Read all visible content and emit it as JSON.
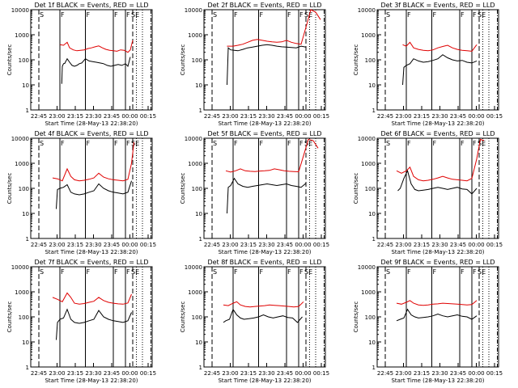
{
  "figure": {
    "xlabel": "Start Time (28-May-13 22:38:20)",
    "ylabel": "Counts/sec",
    "x_ticks": [
      "22:45",
      "23:00",
      "23:15",
      "23:30",
      "23:45",
      "00:00",
      "00:15"
    ],
    "y_ticks": [
      "1",
      "10",
      "100",
      "1000",
      "10000"
    ],
    "markers": [
      "S",
      "F",
      "F",
      "F",
      "F",
      "SE"
    ],
    "colors": {
      "events": "#000000",
      "lld": "#e00000",
      "axis": "#000000"
    }
  },
  "chart_data": [
    {
      "type": "line",
      "title": "Det 1f BLACK = Events, RED = LLD",
      "ylim": [
        1,
        10000
      ],
      "xlim_min": [
        6.67,
        98
      ],
      "log_y": true,
      "series": [
        {
          "key": "events",
          "x": [
            25.5,
            26,
            27,
            28,
            30,
            32,
            34,
            36,
            38,
            40,
            42,
            45,
            48,
            51,
            54,
            57,
            60,
            63,
            66,
            69,
            72,
            75,
            78,
            80,
            82
          ],
          "values": [
            11,
            55,
            70,
            72,
            110,
            80,
            60,
            55,
            60,
            70,
            75,
            110,
            90,
            85,
            80,
            75,
            70,
            60,
            55,
            60,
            65,
            60,
            70,
            55,
            130
          ]
        },
        {
          "key": "lld",
          "x": [
            24,
            27,
            30,
            32,
            35,
            38,
            41,
            44,
            47,
            50,
            53,
            56,
            59,
            62,
            65,
            68,
            71,
            74,
            77,
            80,
            82,
            84
          ],
          "values": [
            400,
            380,
            500,
            300,
            250,
            230,
            240,
            250,
            280,
            300,
            330,
            360,
            300,
            260,
            240,
            230,
            220,
            250,
            240,
            200,
            250,
            600
          ]
        }
      ]
    },
    {
      "type": "line",
      "title": "Det 2f BLACK = Events, RED = LLD",
      "ylim": [
        1,
        10000
      ],
      "log_y": true,
      "series": [
        {
          "key": "events",
          "x": [
            19,
            20,
            22,
            25,
            28,
            32,
            36,
            40,
            44,
            48,
            52,
            56,
            60,
            64,
            68,
            72,
            76,
            80,
            84
          ],
          "values": [
            10,
            300,
            250,
            240,
            230,
            260,
            300,
            320,
            350,
            380,
            400,
            380,
            350,
            330,
            320,
            310,
            300,
            350,
            320
          ]
        },
        {
          "key": "lld",
          "x": [
            19,
            24,
            28,
            32,
            36,
            40,
            44,
            48,
            52,
            56,
            60,
            64,
            68,
            72,
            76,
            80,
            84,
            88,
            92,
            96
          ],
          "values": [
            350,
            350,
            380,
            420,
            500,
            600,
            650,
            600,
            550,
            520,
            500,
            520,
            600,
            500,
            450,
            420,
            2000,
            10000,
            8000,
            4000
          ]
        }
      ]
    },
    {
      "type": "line",
      "title": "Det 3f BLACK = Events, RED = LLD",
      "ylim": [
        1,
        10000
      ],
      "log_y": true,
      "series": [
        {
          "key": "events",
          "x": [
            21,
            22,
            24,
            27,
            30,
            34,
            38,
            42,
            46,
            50,
            54,
            58,
            62,
            66,
            70,
            74,
            78,
            82
          ],
          "values": [
            10,
            50,
            60,
            70,
            110,
            90,
            80,
            85,
            95,
            110,
            160,
            120,
            100,
            90,
            95,
            80,
            75,
            90
          ]
        },
        {
          "key": "lld",
          "x": [
            21,
            24,
            27,
            30,
            34,
            38,
            42,
            46,
            50,
            54,
            58,
            62,
            66,
            70,
            74,
            78,
            82
          ],
          "values": [
            400,
            350,
            500,
            300,
            260,
            240,
            230,
            250,
            300,
            340,
            380,
            300,
            260,
            240,
            230,
            220,
            400
          ]
        }
      ]
    },
    {
      "type": "line",
      "title": "Det 4f BLACK = Events, RED = LLD",
      "ylim": [
        1,
        10000
      ],
      "log_y": true,
      "series": [
        {
          "key": "events",
          "x": [
            21,
            22,
            24,
            27,
            30,
            33,
            36,
            40,
            44,
            48,
            52,
            56,
            60,
            64,
            68,
            72,
            76,
            80,
            83
          ],
          "values": [
            15,
            90,
            100,
            110,
            140,
            70,
            60,
            55,
            60,
            70,
            80,
            150,
            100,
            80,
            70,
            65,
            60,
            70,
            200
          ]
        },
        {
          "key": "lld",
          "x": [
            18,
            22,
            26,
            30,
            33,
            36,
            40,
            44,
            48,
            52,
            56,
            60,
            64,
            68,
            72,
            76,
            80,
            83,
            85
          ],
          "values": [
            260,
            240,
            200,
            600,
            300,
            220,
            200,
            210,
            230,
            260,
            400,
            280,
            240,
            220,
            210,
            200,
            230,
            1000,
            7000
          ]
        }
      ]
    },
    {
      "type": "line",
      "title": "Det 5f BLACK = Events, RED = LLD",
      "ylim": [
        1,
        10000
      ],
      "log_y": true,
      "series": [
        {
          "key": "events",
          "x": [
            19,
            20,
            22,
            25,
            28,
            32,
            36,
            40,
            44,
            48,
            52,
            56,
            60,
            64,
            68,
            72,
            76,
            80,
            84
          ],
          "values": [
            10,
            110,
            130,
            250,
            150,
            120,
            110,
            120,
            130,
            140,
            150,
            140,
            130,
            140,
            150,
            130,
            120,
            110,
            160
          ]
        },
        {
          "key": "lld",
          "x": [
            18,
            22,
            26,
            30,
            34,
            38,
            42,
            46,
            50,
            54,
            58,
            62,
            66,
            70,
            74,
            78,
            82,
            86,
            90,
            94
          ],
          "values": [
            500,
            450,
            500,
            600,
            500,
            480,
            470,
            490,
            500,
            520,
            600,
            550,
            500,
            480,
            470,
            460,
            2000,
            9000,
            8000,
            4000
          ]
        }
      ]
    },
    {
      "type": "line",
      "title": "Det 6f BLACK = Events, RED = LLD",
      "ylim": [
        1,
        10000
      ],
      "log_y": true,
      "series": [
        {
          "key": "events",
          "x": [
            17,
            19,
            22,
            25,
            28,
            31,
            34,
            38,
            42,
            46,
            50,
            54,
            58,
            62,
            66,
            70,
            74,
            78,
            82
          ],
          "values": [
            80,
            100,
            250,
            500,
            150,
            90,
            80,
            85,
            90,
            100,
            110,
            100,
            90,
            100,
            110,
            95,
            90,
            60,
            100
          ]
        },
        {
          "key": "lld",
          "x": [
            16,
            20,
            24,
            27,
            30,
            34,
            38,
            42,
            46,
            50,
            54,
            58,
            62,
            66,
            70,
            74,
            78,
            82,
            85,
            88
          ],
          "values": [
            500,
            400,
            500,
            700,
            300,
            220,
            200,
            210,
            230,
            260,
            300,
            260,
            230,
            220,
            210,
            200,
            250,
            1500,
            9000,
            8000
          ]
        }
      ]
    },
    {
      "type": "line",
      "title": "Det 7f BLACK = Events, RED = LLD",
      "ylim": [
        1,
        10000
      ],
      "log_y": true,
      "series": [
        {
          "key": "events",
          "x": [
            21,
            22,
            24,
            27,
            30,
            33,
            36,
            40,
            44,
            48,
            52,
            56,
            60,
            64,
            68,
            72,
            76,
            80,
            83
          ],
          "values": [
            12,
            60,
            80,
            90,
            200,
            80,
            60,
            55,
            60,
            70,
            80,
            180,
            100,
            80,
            70,
            65,
            60,
            70,
            150
          ]
        },
        {
          "key": "lld",
          "x": [
            18,
            22,
            26,
            30,
            33,
            36,
            40,
            44,
            48,
            52,
            56,
            60,
            64,
            68,
            72,
            76,
            80,
            83
          ],
          "values": [
            600,
            500,
            400,
            900,
            600,
            350,
            320,
            340,
            380,
            420,
            600,
            450,
            380,
            350,
            330,
            320,
            360,
            800
          ]
        }
      ]
    },
    {
      "type": "line",
      "title": "Det 8f BLACK = Events, RED = LLD",
      "ylim": [
        1,
        10000
      ],
      "log_y": true,
      "series": [
        {
          "key": "events",
          "x": [
            16,
            18,
            21,
            24,
            27,
            30,
            33,
            37,
            41,
            45,
            49,
            53,
            57,
            61,
            65,
            69,
            73,
            77,
            81
          ],
          "values": [
            60,
            70,
            80,
            200,
            120,
            90,
            80,
            85,
            90,
            100,
            120,
            100,
            90,
            100,
            110,
            95,
            90,
            60,
            100
          ]
        },
        {
          "key": "lld",
          "x": [
            16,
            20,
            24,
            27,
            30,
            34,
            38,
            42,
            46,
            50,
            54,
            58,
            62,
            66,
            70,
            74,
            78,
            82
          ],
          "values": [
            300,
            280,
            350,
            400,
            300,
            260,
            250,
            260,
            270,
            280,
            300,
            290,
            280,
            270,
            260,
            250,
            260,
            400
          ]
        }
      ]
    },
    {
      "type": "line",
      "title": "Det 9f BLACK = Events, RED = LLD",
      "ylim": [
        1,
        10000
      ],
      "log_y": true,
      "series": [
        {
          "key": "events",
          "x": [
            16,
            19,
            22,
            25,
            28,
            31,
            34,
            38,
            42,
            46,
            50,
            54,
            58,
            62,
            66,
            70,
            74,
            78,
            82
          ],
          "values": [
            70,
            80,
            90,
            200,
            120,
            100,
            90,
            95,
            100,
            110,
            130,
            110,
            100,
            110,
            120,
            105,
            100,
            80,
            110
          ]
        },
        {
          "key": "lld",
          "x": [
            16,
            20,
            24,
            27,
            30,
            34,
            38,
            42,
            46,
            50,
            54,
            58,
            62,
            66,
            70,
            74,
            78,
            82
          ],
          "values": [
            350,
            320,
            380,
            450,
            350,
            300,
            290,
            300,
            320,
            330,
            350,
            340,
            330,
            320,
            310,
            300,
            310,
            450
          ]
        }
      ]
    }
  ]
}
